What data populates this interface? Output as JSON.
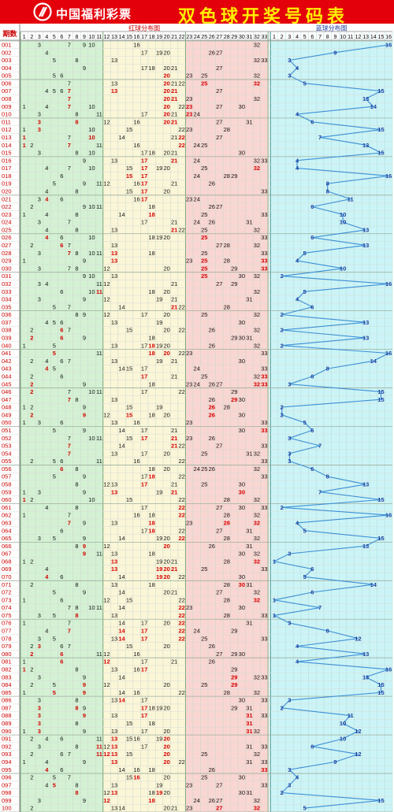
{
  "header": {
    "brand": "中国福利彩票",
    "title": "双色球开奖号码表",
    "bg_color": "#e4000b",
    "title_color": "#ffef00"
  },
  "chart_data": {
    "type": "table",
    "period_header": "期数",
    "red_header": "红球分布图",
    "blue_header": "蓝球分布图",
    "red_numbers": [
      1,
      2,
      3,
      4,
      5,
      6,
      7,
      8,
      9,
      10,
      11,
      12,
      13,
      14,
      15,
      16,
      17,
      18,
      19,
      20,
      21,
      22,
      23,
      24,
      25,
      26,
      27,
      28,
      29,
      30,
      31,
      32,
      33
    ],
    "blue_numbers": [
      1,
      2,
      3,
      4,
      5,
      6,
      7,
      8,
      9,
      10,
      11,
      12,
      13,
      14,
      15,
      16
    ],
    "zone_colors": [
      "#d4f1d4",
      "#fbf6d8",
      "#f9d6d2"
    ],
    "blue_zone_color": "#ccf4f6",
    "line_color": "#3c8fd6",
    "draws": [
      {
        "p": "001",
        "red": [
          3,
          7,
          9,
          10,
          16,
          32
        ],
        "blue": 16
      },
      {
        "p": "002",
        "red": [
          4,
          17,
          19,
          20,
          26,
          27
        ],
        "blue": 9
      },
      {
        "p": "003",
        "red": [
          5,
          8,
          13,
          32,
          33
        ],
        "blue": 3
      },
      {
        "p": "004",
        "red": [
          9,
          17,
          18,
          20,
          21,
          27
        ],
        "blue": 4
      },
      {
        "p": "005",
        "red": [
          5,
          6,
          20,
          23,
          25,
          32
        ],
        "blue": 3
      },
      {
        "p": "006",
        "red": [
          7,
          13,
          20,
          21,
          22,
          25,
          32
        ],
        "blue": 5
      },
      {
        "p": "007",
        "red": [
          4,
          5,
          6,
          7,
          13,
          20,
          21,
          27
        ],
        "blue": 15
      },
      {
        "p": "008",
        "red": [
          7,
          20,
          21,
          23,
          32
        ],
        "blue": 13
      },
      {
        "p": "009",
        "red": [
          1,
          4,
          7,
          10,
          20,
          22,
          23,
          27,
          30
        ],
        "blue": 14
      },
      {
        "p": "010",
        "red": [
          3,
          8,
          11,
          17,
          20,
          21,
          23,
          24
        ],
        "blue": 4
      },
      {
        "p": "011",
        "red": [
          3,
          8,
          12,
          16,
          20,
          21,
          27,
          31
        ],
        "blue": 6
      },
      {
        "p": "012",
        "red": [
          1,
          3,
          10,
          15,
          22,
          23,
          28
        ],
        "blue": 15
      },
      {
        "p": "013",
        "red": [
          1,
          7,
          10,
          14,
          21,
          22,
          27
        ],
        "blue": 7
      },
      {
        "p": "014",
        "red": [
          1,
          2,
          7,
          11,
          16,
          22,
          24,
          25
        ],
        "blue": 13
      },
      {
        "p": "015",
        "red": [
          3,
          8,
          10,
          17,
          18,
          20,
          21,
          30
        ],
        "blue": 15
      },
      {
        "p": "016",
        "red": [
          9,
          13,
          17,
          21,
          24,
          32,
          33
        ],
        "blue": 4
      },
      {
        "p": "017",
        "red": [
          4,
          7,
          10,
          15,
          17,
          19,
          20,
          25,
          32
        ],
        "blue": 4
      },
      {
        "p": "018",
        "red": [
          6,
          15,
          17,
          24,
          28,
          29
        ],
        "blue": 16
      },
      {
        "p": "019",
        "red": [
          5,
          9,
          11,
          12,
          16,
          17,
          21,
          26
        ],
        "blue": 8
      },
      {
        "p": "020",
        "red": [
          4,
          8,
          15,
          17,
          20,
          33
        ],
        "blue": 8
      },
      {
        "p": "021",
        "red": [
          3,
          4,
          6,
          16,
          17,
          23,
          24
        ],
        "blue": 11
      },
      {
        "p": "022",
        "red": [
          2,
          9,
          10,
          11,
          18,
          26,
          27
        ],
        "blue": 6
      },
      {
        "p": "023",
        "red": [
          1,
          4,
          8,
          14,
          18,
          25,
          33
        ],
        "blue": 10
      },
      {
        "p": "024",
        "red": [
          3,
          7,
          17,
          21,
          24,
          26,
          31
        ],
        "blue": 10
      },
      {
        "p": "025",
        "red": [
          4,
          8,
          13,
          21,
          22,
          25,
          32
        ],
        "blue": 13
      },
      {
        "p": "026",
        "red": [
          4,
          6,
          10,
          18,
          19,
          20,
          25,
          33
        ],
        "blue": 6
      },
      {
        "p": "027",
        "red": [
          2,
          6,
          7,
          13,
          27,
          28,
          32
        ],
        "blue": 13
      },
      {
        "p": "028",
        "red": [
          3,
          7,
          8,
          10,
          11,
          13,
          18,
          25,
          33
        ],
        "blue": 5
      },
      {
        "p": "029",
        "red": [
          1,
          9,
          13,
          23,
          25,
          28,
          33
        ],
        "blue": 4
      },
      {
        "p": "030",
        "red": [
          3,
          7,
          8,
          12,
          20,
          25,
          29,
          33
        ],
        "blue": 10
      },
      {
        "p": "031",
        "red": [
          9,
          10,
          13,
          25,
          30,
          32
        ],
        "blue": 2
      },
      {
        "p": "032",
        "red": [
          3,
          4,
          11,
          12,
          21,
          27,
          29
        ],
        "blue": 16
      },
      {
        "p": "033",
        "red": [
          6,
          10,
          11,
          18,
          20,
          32
        ],
        "blue": 5
      },
      {
        "p": "034",
        "red": [
          3,
          9,
          12,
          19,
          21,
          31
        ],
        "blue": 4
      },
      {
        "p": "035",
        "red": [
          5,
          7,
          14,
          21,
          22,
          28
        ],
        "blue": 6
      },
      {
        "p": "036",
        "red": [
          8,
          9,
          12,
          17,
          20,
          25,
          32
        ],
        "blue": 2
      },
      {
        "p": "037",
        "red": [
          4,
          5,
          6,
          13,
          19,
          30
        ],
        "blue": 13
      },
      {
        "p": "038",
        "red": [
          2,
          6,
          7,
          15,
          20,
          22,
          26,
          32
        ],
        "blue": 2
      },
      {
        "p": "039",
        "red": [
          2,
          6,
          9,
          18,
          29,
          30,
          31
        ],
        "blue": 13
      },
      {
        "p": "040",
        "red": [
          1,
          5,
          13,
          17,
          18,
          19,
          20,
          26,
          32
        ],
        "blue": 2
      },
      {
        "p": "041",
        "red": [
          5,
          11,
          18,
          20,
          22,
          23,
          33
        ],
        "blue": 16
      },
      {
        "p": "042",
        "red": [
          2,
          4,
          6,
          7,
          13,
          19,
          21,
          30
        ],
        "blue": 14
      },
      {
        "p": "043",
        "red": [
          4,
          5,
          14,
          15,
          17,
          24,
          33
        ],
        "blue": 8
      },
      {
        "p": "044",
        "red": [
          2,
          6,
          17,
          21,
          25,
          32,
          33
        ],
        "blue": 6
      },
      {
        "p": "045",
        "red": [
          2,
          9,
          18,
          23,
          24,
          26,
          27,
          32,
          33
        ],
        "blue": 3
      },
      {
        "p": "046",
        "red": [
          2,
          7,
          10,
          11,
          17,
          22,
          29
        ],
        "blue": 15
      },
      {
        "p": "047",
        "red": [
          7,
          8,
          13,
          26,
          29,
          30
        ],
        "blue": 15
      },
      {
        "p": "048",
        "red": [
          1,
          2,
          9,
          15,
          19,
          26,
          28
        ],
        "blue": 2
      },
      {
        "p": "049",
        "red": [
          2,
          9,
          12,
          15,
          18,
          20,
          26,
          30
        ],
        "blue": 2
      },
      {
        "p": "050",
        "red": [
          1,
          3,
          6,
          13,
          16,
          23,
          33
        ],
        "blue": 5
      },
      {
        "p": "051",
        "red": [
          5,
          9,
          14,
          17,
          21,
          30,
          33
        ],
        "blue": 6
      },
      {
        "p": "052",
        "red": [
          7,
          10,
          11,
          15,
          17,
          21,
          23,
          26
        ],
        "blue": 3
      },
      {
        "p": "053",
        "red": [
          7,
          14,
          21,
          22,
          27,
          33
        ],
        "blue": 7
      },
      {
        "p": "054",
        "red": [
          7,
          13,
          17,
          20,
          25,
          31,
          32
        ],
        "blue": 3
      },
      {
        "p": "055",
        "red": [
          2,
          5,
          6,
          11,
          16,
          22,
          33
        ],
        "blue": 3
      },
      {
        "p": "056",
        "red": [
          6,
          8,
          18,
          20,
          24,
          25,
          26,
          32
        ],
        "blue": 6
      },
      {
        "p": "057",
        "red": [
          5,
          9,
          17,
          18,
          22,
          33
        ],
        "blue": 8
      },
      {
        "p": "058",
        "red": [
          8,
          12,
          13,
          17,
          21,
          25,
          30
        ],
        "blue": 13
      },
      {
        "p": "059",
        "red": [
          1,
          3,
          9,
          13,
          19,
          21,
          30
        ],
        "blue": 7
      },
      {
        "p": "060",
        "red": [
          1,
          2,
          10,
          15,
          22,
          28,
          32
        ],
        "blue": 15
      },
      {
        "p": "061",
        "red": [
          4,
          8,
          17,
          22,
          27,
          30,
          33
        ],
        "blue": 2
      },
      {
        "p": "062",
        "red": [
          1,
          7,
          16,
          18,
          22,
          28,
          32
        ],
        "blue": 16
      },
      {
        "p": "063",
        "red": [
          7,
          9,
          13,
          18,
          23,
          28,
          32
        ],
        "blue": 4
      },
      {
        "p": "064",
        "red": [
          6,
          17,
          18,
          22,
          27,
          31
        ],
        "blue": 5
      },
      {
        "p": "065",
        "red": [
          3,
          5,
          9,
          14,
          19,
          20,
          22,
          28,
          32
        ],
        "blue": 15
      },
      {
        "p": "066",
        "red": [
          8,
          9,
          12,
          20,
          26,
          31
        ],
        "blue": 13
      },
      {
        "p": "067",
        "red": [
          9,
          11,
          13,
          18,
          30,
          32
        ],
        "blue": 3
      },
      {
        "p": "068",
        "red": [
          1,
          2,
          13,
          19,
          20,
          21,
          28,
          32
        ],
        "blue": 1
      },
      {
        "p": "069",
        "red": [
          4,
          13,
          19,
          20,
          21,
          25,
          33
        ],
        "blue": 6
      },
      {
        "p": "070",
        "red": [
          4,
          6,
          14,
          19,
          20,
          22,
          30
        ],
        "blue": 5
      },
      {
        "p": "071",
        "red": [
          2,
          8,
          13,
          18,
          28,
          30,
          31
        ],
        "blue": 14
      },
      {
        "p": "072",
        "red": [
          5,
          9,
          14,
          20,
          21,
          27,
          32
        ],
        "blue": 6
      },
      {
        "p": "073",
        "red": [
          1,
          6,
          12,
          15,
          22,
          28,
          32
        ],
        "blue": 1
      },
      {
        "p": "074",
        "red": [
          7,
          8,
          10,
          11,
          14,
          22,
          23,
          30
        ],
        "blue": 7
      },
      {
        "p": "075",
        "red": [
          3,
          5,
          8,
          13,
          22,
          28,
          33
        ],
        "blue": 1
      },
      {
        "p": "076",
        "red": [
          1,
          7,
          14,
          17,
          20,
          22,
          31
        ],
        "blue": 3
      },
      {
        "p": "077",
        "red": [
          4,
          7,
          14,
          17,
          22,
          24,
          29
        ],
        "blue": 8
      },
      {
        "p": "078",
        "red": [
          3,
          5,
          13,
          14,
          17,
          22,
          25,
          33
        ],
        "blue": 12
      },
      {
        "p": "079",
        "red": [
          2,
          3,
          6,
          7,
          15,
          20,
          26
        ],
        "blue": 4
      },
      {
        "p": "080",
        "red": [
          2,
          6,
          11,
          12,
          16,
          27,
          29,
          30
        ],
        "blue": 13
      },
      {
        "p": "081",
        "red": [
          1,
          6,
          12,
          17,
          21,
          26
        ],
        "blue": 4
      },
      {
        "p": "082",
        "red": [
          1,
          2,
          8,
          13,
          16,
          17,
          29
        ],
        "blue": 16
      },
      {
        "p": "083",
        "red": [
          3,
          9,
          14,
          29,
          32,
          33
        ],
        "blue": 13
      },
      {
        "p": "084",
        "red": [
          2,
          5,
          9,
          12,
          20,
          25,
          29
        ],
        "blue": 15
      },
      {
        "p": "085",
        "red": [
          1,
          5,
          9,
          14,
          16,
          22,
          28,
          32
        ],
        "blue": 15
      },
      {
        "p": "086",
        "red": [
          3,
          8,
          13,
          14,
          17,
          30,
          33
        ],
        "blue": 3
      },
      {
        "p": "087",
        "red": [
          3,
          8,
          9,
          17,
          18,
          19,
          20,
          29,
          31
        ],
        "blue": 2
      },
      {
        "p": "088",
        "red": [
          3,
          9,
          13,
          17,
          31,
          33
        ],
        "blue": 11
      },
      {
        "p": "089",
        "red": [
          3,
          8,
          15,
          18,
          31
        ],
        "blue": 10
      },
      {
        "p": "090",
        "red": [
          1,
          3,
          9,
          13,
          17,
          20,
          31,
          32
        ],
        "blue": 12
      },
      {
        "p": "091",
        "red": [
          2,
          4,
          6,
          11,
          13,
          15,
          16,
          19,
          20
        ],
        "blue": 10
      },
      {
        "p": "092",
        "red": [
          3,
          8,
          11,
          12,
          13,
          17,
          20,
          31,
          33
        ],
        "blue": 6
      },
      {
        "p": "093",
        "red": [
          2,
          6,
          7,
          11,
          12,
          13,
          15,
          20,
          25,
          32
        ],
        "blue": 12
      },
      {
        "p": "094",
        "red": [
          1,
          4,
          9,
          13,
          20,
          22,
          31,
          33
        ],
        "blue": 9
      },
      {
        "p": "095",
        "red": [
          4,
          6,
          14,
          16,
          18,
          26,
          33
        ],
        "blue": 3
      },
      {
        "p": "096",
        "red": [
          2,
          5,
          7,
          15,
          16,
          20,
          25,
          30
        ],
        "blue": 4
      },
      {
        "p": "097",
        "red": [
          4,
          5,
          8,
          13,
          19,
          23,
          27,
          33
        ],
        "blue": 3
      },
      {
        "p": "098",
        "red": [
          8,
          12,
          13,
          18,
          19,
          20,
          30,
          31
        ],
        "blue": 2
      },
      {
        "p": "099",
        "red": [
          3,
          9,
          12,
          18,
          24,
          26,
          27,
          32
        ],
        "blue": 15
      },
      {
        "p": "100",
        "red": [
          2,
          13,
          14,
          20,
          21,
          23,
          27,
          32
        ],
        "blue": 5
      }
    ]
  }
}
